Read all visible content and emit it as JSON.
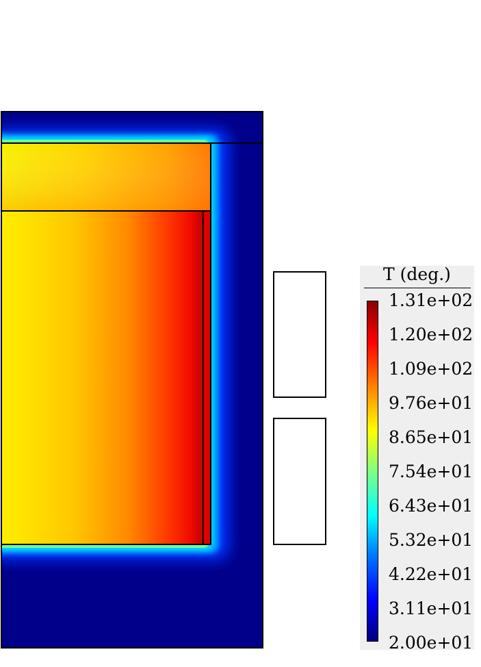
{
  "diagram": {
    "description_label": "temperature-field",
    "regions": [
      "outer-domain",
      "top-block",
      "main-block",
      "thin-strip",
      "upper-coil",
      "lower-coil"
    ]
  },
  "legend": {
    "title": "T (deg.)",
    "ticks": [
      "1.31e+02",
      "1.20e+02",
      "1.09e+02",
      "9.76e+01",
      "8.65e+01",
      "7.54e+01",
      "6.43e+01",
      "5.32e+01",
      "4.22e+01",
      "3.11e+01",
      "2.00e+01"
    ],
    "min": 20.0,
    "max": 131.0
  },
  "colors": {
    "cold": "#00007f",
    "hot": "#8b0000",
    "legend_background": "#efefef",
    "outline": "#000000"
  }
}
